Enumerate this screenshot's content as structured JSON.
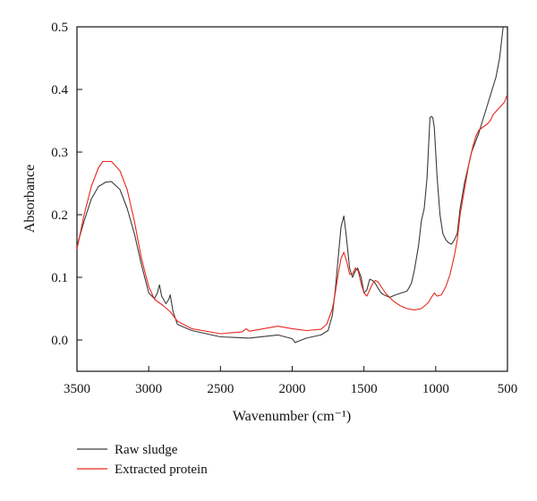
{
  "chart_data": {
    "type": "line",
    "title": "",
    "xlabel": "Wavenumber (cm⁻¹)",
    "ylabel": "Absorbance",
    "xlim": [
      3500,
      500
    ],
    "ylim": [
      -0.05,
      0.5
    ],
    "x_reversed": true,
    "x_ticks": [
      "3500",
      "3000",
      "2500",
      "2000",
      "1500",
      "1000",
      "500"
    ],
    "y_ticks": [
      "0.0",
      "0.1",
      "0.2",
      "0.3",
      "0.4",
      "0.5"
    ],
    "grid": false,
    "legend_position": "below",
    "series": [
      {
        "name": "Raw sludge",
        "color": "#3a3a3a",
        "points": [
          [
            3500,
            0.15
          ],
          [
            3450,
            0.19
          ],
          [
            3400,
            0.225
          ],
          [
            3350,
            0.245
          ],
          [
            3300,
            0.252
          ],
          [
            3260,
            0.253
          ],
          [
            3200,
            0.24
          ],
          [
            3150,
            0.21
          ],
          [
            3100,
            0.17
          ],
          [
            3050,
            0.12
          ],
          [
            3000,
            0.075
          ],
          [
            2960,
            0.066
          ],
          [
            2940,
            0.075
          ],
          [
            2925,
            0.088
          ],
          [
            2910,
            0.07
          ],
          [
            2880,
            0.058
          ],
          [
            2860,
            0.065
          ],
          [
            2850,
            0.072
          ],
          [
            2830,
            0.045
          ],
          [
            2800,
            0.025
          ],
          [
            2700,
            0.015
          ],
          [
            2500,
            0.005
          ],
          [
            2300,
            0.003
          ],
          [
            2100,
            0.008
          ],
          [
            2000,
            0.002
          ],
          [
            1980,
            -0.004
          ],
          [
            1900,
            0.003
          ],
          [
            1800,
            0.008
          ],
          [
            1750,
            0.015
          ],
          [
            1720,
            0.04
          ],
          [
            1700,
            0.08
          ],
          [
            1680,
            0.13
          ],
          [
            1660,
            0.18
          ],
          [
            1640,
            0.198
          ],
          [
            1625,
            0.17
          ],
          [
            1600,
            0.115
          ],
          [
            1580,
            0.1
          ],
          [
            1560,
            0.11
          ],
          [
            1545,
            0.115
          ],
          [
            1520,
            0.1
          ],
          [
            1500,
            0.075
          ],
          [
            1480,
            0.08
          ],
          [
            1460,
            0.097
          ],
          [
            1440,
            0.095
          ],
          [
            1420,
            0.09
          ],
          [
            1400,
            0.082
          ],
          [
            1380,
            0.075
          ],
          [
            1360,
            0.072
          ],
          [
            1320,
            0.068
          ],
          [
            1280,
            0.072
          ],
          [
            1240,
            0.075
          ],
          [
            1200,
            0.078
          ],
          [
            1170,
            0.09
          ],
          [
            1150,
            0.11
          ],
          [
            1120,
            0.15
          ],
          [
            1100,
            0.19
          ],
          [
            1080,
            0.21
          ],
          [
            1060,
            0.26
          ],
          [
            1040,
            0.355
          ],
          [
            1030,
            0.357
          ],
          [
            1020,
            0.355
          ],
          [
            1010,
            0.34
          ],
          [
            990,
            0.26
          ],
          [
            970,
            0.2
          ],
          [
            950,
            0.17
          ],
          [
            930,
            0.16
          ],
          [
            910,
            0.155
          ],
          [
            890,
            0.153
          ],
          [
            870,
            0.16
          ],
          [
            850,
            0.17
          ],
          [
            830,
            0.21
          ],
          [
            800,
            0.25
          ],
          [
            770,
            0.28
          ],
          [
            750,
            0.3
          ],
          [
            700,
            0.33
          ],
          [
            660,
            0.36
          ],
          [
            620,
            0.39
          ],
          [
            580,
            0.42
          ],
          [
            555,
            0.45
          ],
          [
            540,
            0.48
          ],
          [
            530,
            0.5
          ]
        ]
      },
      {
        "name": "Extracted protein",
        "color": "#e8281e",
        "points": [
          [
            3500,
            0.145
          ],
          [
            3450,
            0.2
          ],
          [
            3400,
            0.245
          ],
          [
            3350,
            0.275
          ],
          [
            3320,
            0.285
          ],
          [
            3260,
            0.285
          ],
          [
            3200,
            0.27
          ],
          [
            3150,
            0.24
          ],
          [
            3100,
            0.19
          ],
          [
            3050,
            0.13
          ],
          [
            3000,
            0.085
          ],
          [
            2960,
            0.065
          ],
          [
            2900,
            0.055
          ],
          [
            2850,
            0.045
          ],
          [
            2800,
            0.03
          ],
          [
            2700,
            0.018
          ],
          [
            2500,
            0.01
          ],
          [
            2350,
            0.013
          ],
          [
            2320,
            0.018
          ],
          [
            2300,
            0.014
          ],
          [
            2200,
            0.018
          ],
          [
            2100,
            0.022
          ],
          [
            2000,
            0.018
          ],
          [
            1900,
            0.015
          ],
          [
            1800,
            0.017
          ],
          [
            1760,
            0.025
          ],
          [
            1720,
            0.05
          ],
          [
            1700,
            0.075
          ],
          [
            1680,
            0.105
          ],
          [
            1660,
            0.13
          ],
          [
            1640,
            0.14
          ],
          [
            1620,
            0.125
          ],
          [
            1600,
            0.105
          ],
          [
            1580,
            0.105
          ],
          [
            1560,
            0.115
          ],
          [
            1540,
            0.11
          ],
          [
            1520,
            0.09
          ],
          [
            1500,
            0.075
          ],
          [
            1480,
            0.07
          ],
          [
            1460,
            0.08
          ],
          [
            1440,
            0.09
          ],
          [
            1420,
            0.095
          ],
          [
            1400,
            0.092
          ],
          [
            1380,
            0.085
          ],
          [
            1350,
            0.075
          ],
          [
            1300,
            0.063
          ],
          [
            1250,
            0.055
          ],
          [
            1200,
            0.05
          ],
          [
            1150,
            0.048
          ],
          [
            1100,
            0.05
          ],
          [
            1050,
            0.06
          ],
          [
            1030,
            0.068
          ],
          [
            1010,
            0.075
          ],
          [
            990,
            0.07
          ],
          [
            960,
            0.072
          ],
          [
            930,
            0.085
          ],
          [
            900,
            0.105
          ],
          [
            870,
            0.135
          ],
          [
            850,
            0.16
          ],
          [
            830,
            0.2
          ],
          [
            800,
            0.24
          ],
          [
            770,
            0.28
          ],
          [
            740,
            0.31
          ],
          [
            720,
            0.325
          ],
          [
            700,
            0.335
          ],
          [
            670,
            0.34
          ],
          [
            640,
            0.345
          ],
          [
            620,
            0.35
          ],
          [
            600,
            0.36
          ],
          [
            580,
            0.365
          ],
          [
            560,
            0.37
          ],
          [
            540,
            0.375
          ],
          [
            520,
            0.38
          ],
          [
            505,
            0.39
          ],
          [
            500,
            0.39
          ]
        ]
      }
    ]
  }
}
